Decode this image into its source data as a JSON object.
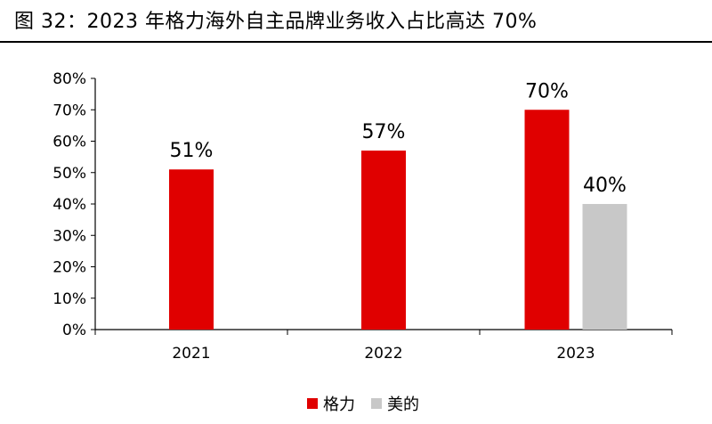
{
  "chart_data": {
    "type": "bar",
    "title": "图 32：2023 年格力海外自主品牌业务收入占比高达 70%",
    "categories": [
      "2021",
      "2022",
      "2023"
    ],
    "series": [
      {
        "name": "格力",
        "color": "#e00000",
        "values": [
          51,
          57,
          70
        ],
        "labels": [
          "51%",
          "57%",
          "70%"
        ]
      },
      {
        "name": "美的",
        "color": "#c8c8c8",
        "values": [
          null,
          null,
          40
        ],
        "labels": [
          null,
          null,
          "40%"
        ]
      }
    ],
    "yticks": [
      "0%",
      "10%",
      "20%",
      "30%",
      "40%",
      "50%",
      "60%",
      "70%",
      "80%"
    ],
    "ylim": [
      0,
      80
    ],
    "xlabel": "",
    "ylabel": "",
    "grid": false,
    "legend_position": "bottom"
  }
}
